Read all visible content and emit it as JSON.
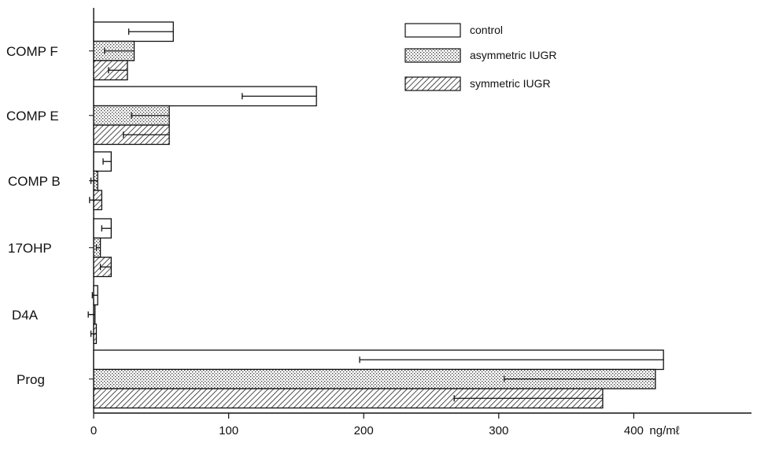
{
  "chart_data": {
    "type": "bar",
    "orientation": "horizontal",
    "title": "",
    "xlabel": "",
    "ylabel": "",
    "x_unit": "ng/ml",
    "xlim": [
      0,
      470
    ],
    "xticks": [
      0,
      100,
      200,
      300,
      400
    ],
    "tick_labels": [
      "0",
      "100",
      "200",
      "300",
      "400"
    ],
    "unit_label": "ng/mℓ",
    "categories": [
      "COMP F",
      "COMP E",
      "COMP B",
      "17OHP",
      "D4A",
      "Prog"
    ],
    "series": [
      {
        "name": "control",
        "pattern": "plain",
        "values": [
          59,
          165,
          13,
          13,
          3,
          422
        ],
        "errors": [
          33,
          55,
          6,
          7,
          4,
          225
        ]
      },
      {
        "name": "asymmetric IUGR",
        "pattern": "dotted",
        "values": [
          30,
          56,
          3,
          5,
          1,
          416
        ],
        "errors": [
          22,
          28,
          5,
          3,
          5,
          112
        ]
      },
      {
        "name": "symmetric IUGR",
        "pattern": "hatched",
        "values": [
          25,
          56,
          6,
          13,
          2,
          377
        ],
        "errors": [
          14,
          34,
          9,
          8,
          4,
          110
        ]
      }
    ],
    "legend_position": "top-right",
    "grid": false
  }
}
